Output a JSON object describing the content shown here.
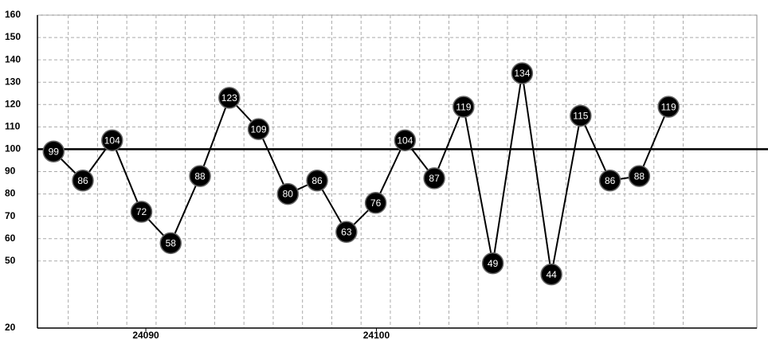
{
  "chart_data": {
    "type": "line",
    "x": [
      24086,
      24087.27,
      24088.54,
      24089.81,
      24091.08,
      24092.35,
      24093.62,
      24094.89,
      24096.16,
      24097.43,
      24098.7,
      24099.97,
      24101.24,
      24102.51,
      24103.78,
      24105.05,
      24106.32,
      24107.59,
      24108.86,
      24110.13,
      24111.4,
      24112.67
    ],
    "values": [
      99,
      86,
      104,
      72,
      58,
      88,
      123,
      109,
      80,
      86,
      63,
      76,
      104,
      87,
      119,
      49,
      134,
      44,
      115,
      86,
      88,
      119
    ],
    "color": "#000000",
    "reference": 100,
    "xlim": [
      24085.3,
      24116.5
    ],
    "xticks": [
      24090,
      24100
    ],
    "ylim": [
      20,
      160
    ],
    "yticks": [
      20,
      50,
      60,
      70,
      80,
      90,
      100,
      110,
      120,
      130,
      140,
      150,
      160
    ],
    "grid": true
  }
}
